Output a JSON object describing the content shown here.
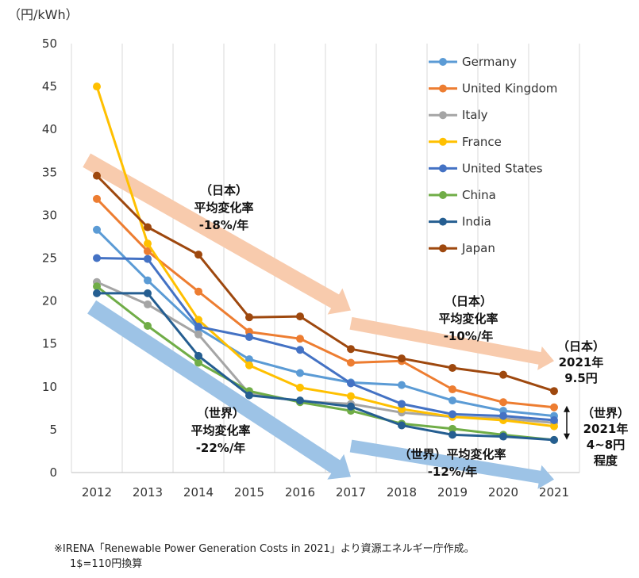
{
  "chart_data": {
    "type": "line",
    "ylabel": "（円/kWh）",
    "ylim": [
      0,
      50
    ],
    "yticks": [
      0,
      5,
      10,
      15,
      20,
      25,
      30,
      35,
      40,
      45,
      50
    ],
    "categories": [
      "2012",
      "2013",
      "2014",
      "2015",
      "2016",
      "2017",
      "2018",
      "2019",
      "2020",
      "2021"
    ],
    "grid": "vertical",
    "legend_position": "top-right",
    "series": [
      {
        "name": "Germany",
        "color": "#5b9bd5",
        "values": [
          28.3,
          22.4,
          16.8,
          13.2,
          11.6,
          10.5,
          10.2,
          8.4,
          7.2,
          6.6
        ]
      },
      {
        "name": "United Kingdom",
        "color": "#ed7d31",
        "values": [
          31.9,
          25.8,
          21.1,
          16.4,
          15.6,
          12.8,
          13.0,
          9.7,
          8.2,
          7.6
        ]
      },
      {
        "name": "Italy",
        "color": "#a5a5a5",
        "values": [
          22.2,
          19.6,
          16.1,
          9.2,
          8.3,
          8.0,
          7.0,
          6.5,
          6.3,
          5.8
        ]
      },
      {
        "name": "France",
        "color": "#ffc000",
        "values": [
          45.0,
          26.7,
          17.8,
          12.5,
          9.9,
          8.9,
          7.4,
          6.5,
          6.1,
          5.4
        ]
      },
      {
        "name": "United States",
        "color": "#4472c4",
        "values": [
          25.0,
          24.9,
          17.0,
          15.8,
          14.3,
          10.4,
          8.0,
          6.8,
          6.6,
          6.1
        ]
      },
      {
        "name": "China",
        "color": "#70ad47",
        "values": [
          21.7,
          17.1,
          12.8,
          9.5,
          8.2,
          7.2,
          5.7,
          5.1,
          4.4,
          3.8
        ]
      },
      {
        "name": "India",
        "color": "#255e91",
        "values": [
          20.9,
          20.9,
          13.6,
          9.0,
          8.4,
          7.7,
          5.5,
          4.4,
          4.2,
          3.8
        ]
      },
      {
        "name": "Japan",
        "color": "#9e480e",
        "values": [
          34.6,
          28.6,
          25.4,
          18.1,
          18.2,
          14.4,
          13.3,
          12.2,
          11.4,
          9.5
        ]
      }
    ],
    "annotations": [
      {
        "lines": [
          "（日本）",
          "平均変化率",
          "-18%/年"
        ]
      },
      {
        "lines": [
          "（日本）",
          "平均変化率",
          "-10%/年"
        ]
      },
      {
        "lines": [
          "（日本）",
          "2021年",
          "9.5円"
        ]
      },
      {
        "lines": [
          "（世界）",
          "平均変化率",
          "-22%/年"
        ]
      },
      {
        "lines": [
          "（世界）平均変化率",
          "-12%/年"
        ]
      },
      {
        "lines": [
          "（世界）",
          "2021年",
          "4~8円",
          "程度"
        ]
      }
    ]
  },
  "colors": {
    "japan_arrow": "#f8cbad",
    "world_arrow": "#9dc3e6"
  },
  "footnote": {
    "line1": "※IRENA「Renewable Power Generation Costs in 2021」より資源エネルギー庁作成。",
    "line2": "1$=110円換算"
  }
}
